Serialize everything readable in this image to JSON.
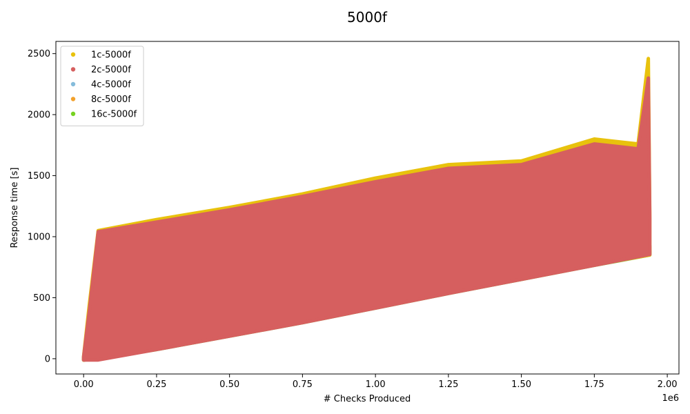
{
  "chart_data": {
    "type": "scatter",
    "title": "5000f",
    "xlabel": "# Checks Produced",
    "ylabel": "Response time [s]",
    "x_offset_label": "1e6",
    "xlim": [
      -0.095,
      2.04
    ],
    "ylim": [
      -125,
      2600
    ],
    "x_ticks": [
      0.0,
      0.25,
      0.5,
      0.75,
      1.0,
      1.25,
      1.5,
      1.75,
      2.0
    ],
    "x_tick_labels": [
      "0.00",
      "0.25",
      "0.50",
      "0.75",
      "1.00",
      "1.25",
      "1.50",
      "1.75",
      "2.00"
    ],
    "y_ticks": [
      0,
      500,
      1000,
      1500,
      2000,
      2500
    ],
    "y_tick_labels": [
      "0",
      "500",
      "1000",
      "1500",
      "2000",
      "2500"
    ],
    "legend_position": "top-left",
    "series": [
      {
        "name": "1c-5000f",
        "color": "#e8c20d",
        "upper": [
          [
            0.0,
            20
          ],
          [
            0.02,
            450
          ],
          [
            0.05,
            1050
          ],
          [
            0.25,
            1140
          ],
          [
            0.5,
            1240
          ],
          [
            0.75,
            1350
          ],
          [
            1.0,
            1480
          ],
          [
            1.25,
            1590
          ],
          [
            1.5,
            1620
          ],
          [
            1.75,
            1800
          ],
          [
            1.9,
            1760
          ],
          [
            1.935,
            2460
          ],
          [
            1.94,
            1200
          ]
        ],
        "lower": [
          [
            0.0,
            -10
          ],
          [
            0.05,
            0
          ],
          [
            0.25,
            80
          ],
          [
            0.5,
            190
          ],
          [
            0.75,
            300
          ],
          [
            1.0,
            420
          ],
          [
            1.25,
            540
          ],
          [
            1.5,
            660
          ],
          [
            1.75,
            770
          ],
          [
            1.94,
            850
          ]
        ]
      },
      {
        "name": "2c-5000f",
        "color": "#d65f5f",
        "upper": [
          [
            0.0,
            15
          ],
          [
            0.02,
            400
          ],
          [
            0.05,
            1040
          ],
          [
            0.25,
            1120
          ],
          [
            0.5,
            1220
          ],
          [
            0.75,
            1330
          ],
          [
            1.0,
            1450
          ],
          [
            1.25,
            1560
          ],
          [
            1.5,
            1590
          ],
          [
            1.75,
            1760
          ],
          [
            1.9,
            1720
          ],
          [
            1.935,
            2300
          ],
          [
            1.94,
            1150
          ]
        ],
        "lower": [
          [
            0.0,
            -10
          ],
          [
            0.05,
            -10
          ],
          [
            0.25,
            75
          ],
          [
            0.5,
            185
          ],
          [
            0.75,
            295
          ],
          [
            1.0,
            415
          ],
          [
            1.25,
            535
          ],
          [
            1.5,
            650
          ],
          [
            1.75,
            765
          ],
          [
            1.94,
            855
          ]
        ]
      },
      {
        "name": "4c-5000f",
        "color": "#85bcdb",
        "upper": [
          [
            0.0,
            10
          ],
          [
            0.03,
            230
          ],
          [
            0.05,
            320
          ],
          [
            0.25,
            400
          ],
          [
            0.5,
            520
          ],
          [
            0.75,
            630
          ],
          [
            1.0,
            740
          ],
          [
            1.25,
            840
          ],
          [
            1.5,
            910
          ],
          [
            1.75,
            960
          ],
          [
            1.9,
            1010
          ],
          [
            1.94,
            930
          ]
        ],
        "lower": [
          [
            0.0,
            -10
          ],
          [
            0.05,
            0
          ],
          [
            0.25,
            80
          ],
          [
            0.5,
            190
          ],
          [
            0.75,
            300
          ],
          [
            1.0,
            420
          ],
          [
            1.25,
            540
          ],
          [
            1.5,
            650
          ],
          [
            1.75,
            770
          ],
          [
            1.94,
            860
          ]
        ]
      },
      {
        "name": "8c-5000f",
        "color": "#f2a12c",
        "upper": [
          [
            0.0,
            8
          ],
          [
            0.05,
            120
          ],
          [
            0.07,
            180
          ],
          [
            0.25,
            230
          ],
          [
            0.5,
            340
          ],
          [
            0.75,
            450
          ],
          [
            1.0,
            560
          ],
          [
            1.25,
            680
          ],
          [
            1.5,
            760
          ],
          [
            1.75,
            850
          ],
          [
            1.94,
            920
          ]
        ],
        "lower": [
          [
            0.0,
            -10
          ],
          [
            0.05,
            0
          ],
          [
            0.25,
            80
          ],
          [
            0.5,
            190
          ],
          [
            0.75,
            300
          ],
          [
            1.0,
            420
          ],
          [
            1.25,
            540
          ],
          [
            1.5,
            650
          ],
          [
            1.75,
            770
          ],
          [
            1.94,
            860
          ]
        ]
      },
      {
        "name": "16c-5000f",
        "color": "#76d221",
        "upper": [
          [
            0.0,
            5
          ],
          [
            0.05,
            60
          ],
          [
            0.1,
            90
          ],
          [
            0.25,
            140
          ],
          [
            0.5,
            240
          ],
          [
            0.75,
            350
          ],
          [
            1.0,
            460
          ],
          [
            1.25,
            580
          ],
          [
            1.5,
            680
          ],
          [
            1.75,
            780
          ],
          [
            1.94,
            880
          ]
        ],
        "lower": [
          [
            0.0,
            -10
          ],
          [
            0.05,
            0
          ],
          [
            0.25,
            75
          ],
          [
            0.5,
            185
          ],
          [
            0.75,
            295
          ],
          [
            1.0,
            415
          ],
          [
            1.25,
            535
          ],
          [
            1.5,
            650
          ],
          [
            1.75,
            765
          ],
          [
            1.94,
            850
          ]
        ]
      }
    ],
    "draw_order": [
      "4c-5000f",
      "8c-5000f",
      "16c-5000f",
      "1c-5000f",
      "2c-5000f"
    ]
  }
}
